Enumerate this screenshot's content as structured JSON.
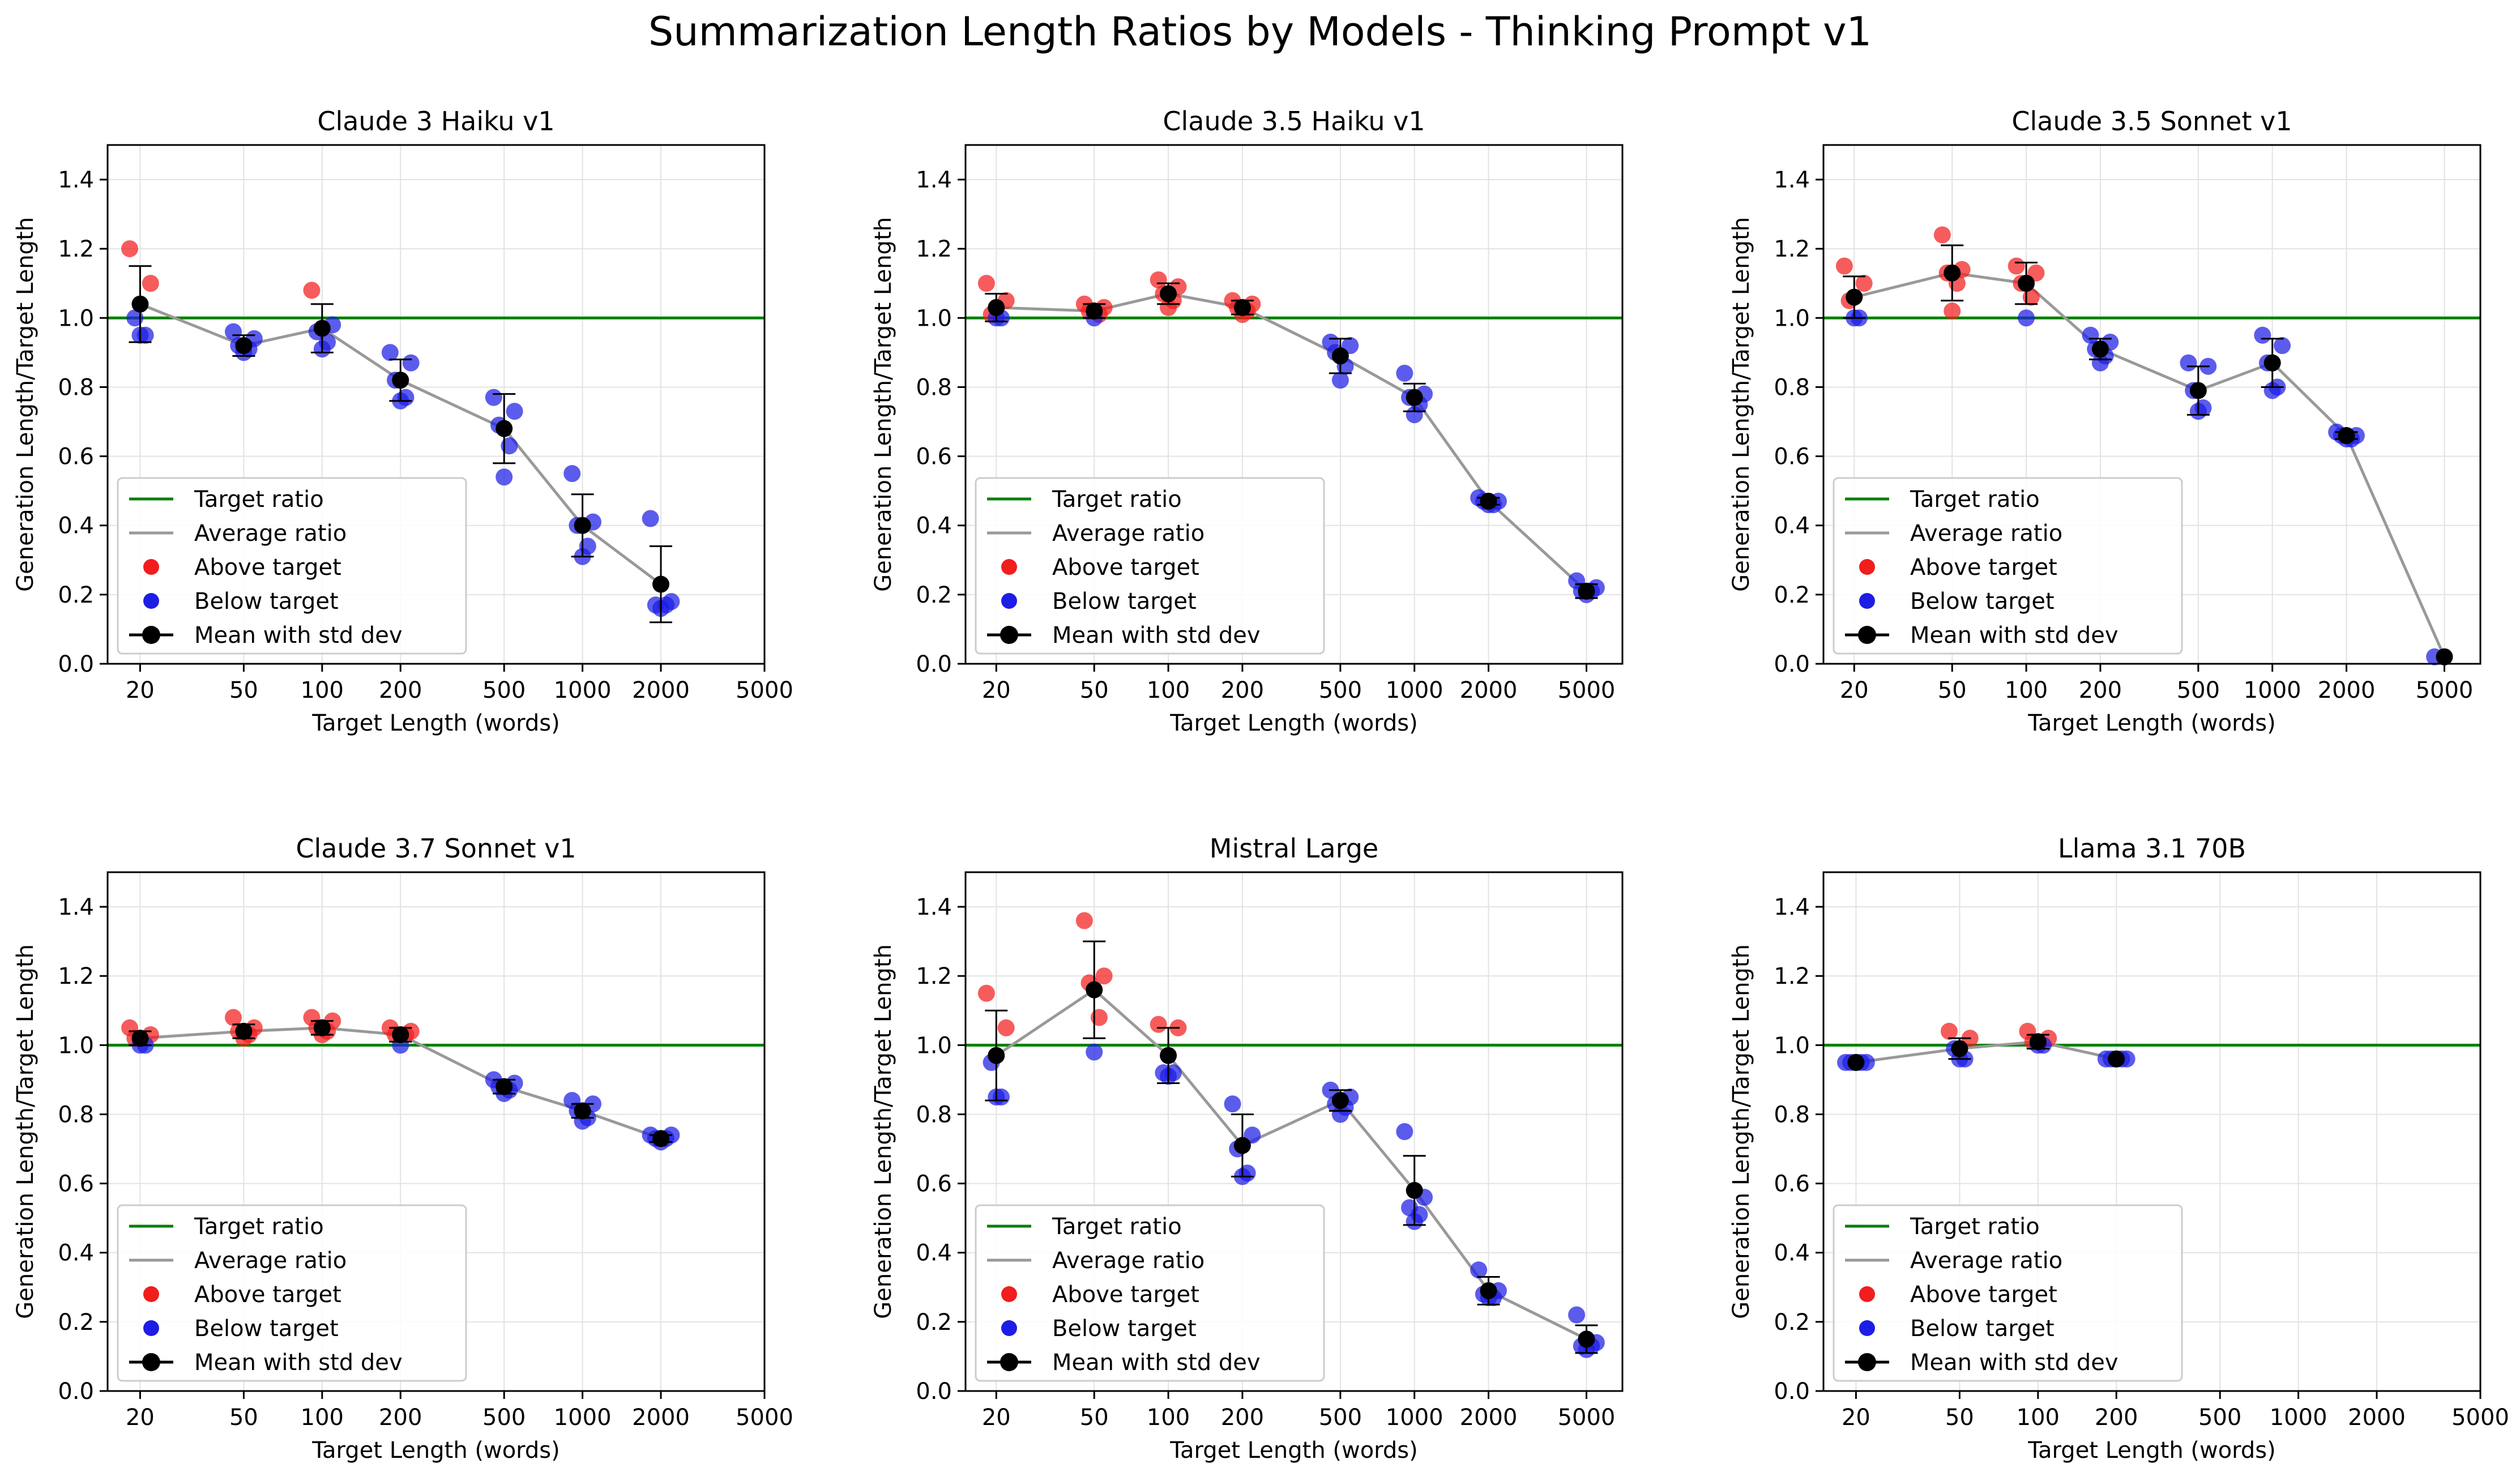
{
  "figure_title": "Summarization Length Ratios by Models - Thinking Prompt v1",
  "colors": {
    "target_line": "#008000",
    "average_line": "#999999",
    "above": "#f21d1d",
    "below": "#1d1de5",
    "mean": "#000000",
    "grid": "#e3e3e3"
  },
  "legend_labels": [
    "Target ratio",
    "Average ratio",
    "Above target",
    "Below target",
    "Mean with std dev"
  ],
  "chart_data": [
    {
      "type": "scatter",
      "title": "Claude 3 Haiku v1",
      "xlabel": "Target Length (words)",
      "ylabel": "Generation Length/Target Length",
      "xscale": "log",
      "xlim": [
        15,
        5000
      ],
      "ylim": [
        0,
        1.5
      ],
      "xticks": [
        20,
        50,
        100,
        200,
        500,
        1000,
        2000,
        5000
      ],
      "yticks": [
        0.0,
        0.2,
        0.4,
        0.6,
        0.8,
        1.0,
        1.2,
        1.4
      ],
      "target_ratio": 1.0,
      "legend_position": "lower-left",
      "groups": [
        {
          "x": 20,
          "points": [
            1.2,
            1.1,
            1.0,
            0.95,
            0.95
          ],
          "mean": 1.04,
          "std": 0.11
        },
        {
          "x": 50,
          "points": [
            0.96,
            0.94,
            0.92,
            0.91,
            0.9
          ],
          "mean": 0.92,
          "std": 0.03
        },
        {
          "x": 100,
          "points": [
            1.08,
            0.98,
            0.96,
            0.93,
            0.91
          ],
          "mean": 0.97,
          "std": 0.07
        },
        {
          "x": 200,
          "points": [
            0.9,
            0.87,
            0.82,
            0.77,
            0.76
          ],
          "mean": 0.82,
          "std": 0.06
        },
        {
          "x": 500,
          "points": [
            0.77,
            0.73,
            0.69,
            0.63,
            0.54
          ],
          "mean": 0.68,
          "std": 0.1
        },
        {
          "x": 1000,
          "points": [
            0.55,
            0.41,
            0.4,
            0.34,
            0.31
          ],
          "mean": 0.4,
          "std": 0.09
        },
        {
          "x": 2000,
          "points": [
            0.42,
            0.18,
            0.17,
            0.17,
            0.16
          ],
          "mean": 0.23,
          "std": 0.11
        }
      ]
    },
    {
      "type": "scatter",
      "title": "Claude 3.5 Haiku v1",
      "xlabel": "Target Length (words)",
      "ylabel": "Generation Length/Target Length",
      "xscale": "log",
      "xlim": [
        15,
        7000
      ],
      "ylim": [
        0,
        1.5
      ],
      "xticks": [
        20,
        50,
        100,
        200,
        500,
        1000,
        2000,
        5000
      ],
      "yticks": [
        0.0,
        0.2,
        0.4,
        0.6,
        0.8,
        1.0,
        1.2,
        1.4
      ],
      "target_ratio": 1.0,
      "legend_position": "lower-left",
      "groups": [
        {
          "x": 20,
          "points": [
            1.1,
            1.05,
            1.01,
            1.0,
            1.0
          ],
          "mean": 1.03,
          "std": 0.04
        },
        {
          "x": 50,
          "points": [
            1.04,
            1.03,
            1.02,
            1.01,
            1.0
          ],
          "mean": 1.02,
          "std": 0.02
        },
        {
          "x": 100,
          "points": [
            1.11,
            1.09,
            1.07,
            1.05,
            1.03
          ],
          "mean": 1.07,
          "std": 0.03
        },
        {
          "x": 200,
          "points": [
            1.05,
            1.04,
            1.03,
            1.02,
            1.01
          ],
          "mean": 1.03,
          "std": 0.02
        },
        {
          "x": 500,
          "points": [
            0.93,
            0.92,
            0.9,
            0.86,
            0.82
          ],
          "mean": 0.89,
          "std": 0.05
        },
        {
          "x": 1000,
          "points": [
            0.84,
            0.78,
            0.77,
            0.75,
            0.72
          ],
          "mean": 0.77,
          "std": 0.04
        },
        {
          "x": 2000,
          "points": [
            0.48,
            0.47,
            0.47,
            0.46,
            0.46
          ],
          "mean": 0.47,
          "std": 0.01
        },
        {
          "x": 5000,
          "points": [
            0.24,
            0.22,
            0.21,
            0.21,
            0.2
          ],
          "mean": 0.21,
          "std": 0.02
        }
      ]
    },
    {
      "type": "scatter",
      "title": "Claude 3.5 Sonnet v1",
      "xlabel": "Target Length (words)",
      "ylabel": "Generation Length/Target Length",
      "xscale": "log",
      "xlim": [
        15,
        7000
      ],
      "ylim": [
        0,
        1.5
      ],
      "xticks": [
        20,
        50,
        100,
        200,
        500,
        1000,
        2000,
        5000
      ],
      "yticks": [
        0.0,
        0.2,
        0.4,
        0.6,
        0.8,
        1.0,
        1.2,
        1.4
      ],
      "target_ratio": 1.0,
      "legend_position": "lower-left",
      "groups": [
        {
          "x": 20,
          "points": [
            1.15,
            1.1,
            1.05,
            1.0,
            1.0
          ],
          "mean": 1.06,
          "std": 0.06
        },
        {
          "x": 50,
          "points": [
            1.24,
            1.14,
            1.13,
            1.1,
            1.02
          ],
          "mean": 1.13,
          "std": 0.08
        },
        {
          "x": 100,
          "points": [
            1.15,
            1.13,
            1.1,
            1.06,
            1.0
          ],
          "mean": 1.1,
          "std": 0.06
        },
        {
          "x": 200,
          "points": [
            0.95,
            0.93,
            0.91,
            0.89,
            0.87
          ],
          "mean": 0.91,
          "std": 0.03
        },
        {
          "x": 500,
          "points": [
            0.87,
            0.86,
            0.79,
            0.74,
            0.73
          ],
          "mean": 0.79,
          "std": 0.07
        },
        {
          "x": 1000,
          "points": [
            0.95,
            0.92,
            0.87,
            0.8,
            0.79
          ],
          "mean": 0.87,
          "std": 0.07
        },
        {
          "x": 2000,
          "points": [
            0.67,
            0.66,
            0.66,
            0.65,
            0.65
          ],
          "mean": 0.66,
          "std": 0.01
        },
        {
          "x": 5000,
          "points": [
            0.02
          ],
          "mean": 0.02,
          "std": 0.0
        }
      ]
    },
    {
      "type": "scatter",
      "title": "Claude 3.7 Sonnet v1",
      "xlabel": "Target Length (words)",
      "ylabel": "Generation Length/Target Length",
      "xscale": "log",
      "xlim": [
        15,
        5000
      ],
      "ylim": [
        0,
        1.5
      ],
      "xticks": [
        20,
        50,
        100,
        200,
        500,
        1000,
        2000,
        5000
      ],
      "yticks": [
        0.0,
        0.2,
        0.4,
        0.6,
        0.8,
        1.0,
        1.2,
        1.4
      ],
      "target_ratio": 1.0,
      "legend_position": "lower-left",
      "groups": [
        {
          "x": 20,
          "points": [
            1.05,
            1.03,
            1.02,
            1.0,
            1.0
          ],
          "mean": 1.02,
          "std": 0.02
        },
        {
          "x": 50,
          "points": [
            1.08,
            1.05,
            1.04,
            1.03,
            1.02
          ],
          "mean": 1.04,
          "std": 0.02
        },
        {
          "x": 100,
          "points": [
            1.08,
            1.07,
            1.05,
            1.04,
            1.03
          ],
          "mean": 1.05,
          "std": 0.02
        },
        {
          "x": 200,
          "points": [
            1.05,
            1.04,
            1.03,
            1.03,
            1.0
          ],
          "mean": 1.03,
          "std": 0.02
        },
        {
          "x": 500,
          "points": [
            0.9,
            0.89,
            0.88,
            0.87,
            0.86
          ],
          "mean": 0.88,
          "std": 0.02
        },
        {
          "x": 1000,
          "points": [
            0.84,
            0.83,
            0.81,
            0.79,
            0.78
          ],
          "mean": 0.81,
          "std": 0.02
        },
        {
          "x": 2000,
          "points": [
            0.74,
            0.74,
            0.73,
            0.73,
            0.72
          ],
          "mean": 0.73,
          "std": 0.01
        }
      ]
    },
    {
      "type": "scatter",
      "title": "Mistral Large",
      "xlabel": "Target Length (words)",
      "ylabel": "Generation Length/Target Length",
      "xscale": "log",
      "xlim": [
        15,
        7000
      ],
      "ylim": [
        0,
        1.5
      ],
      "xticks": [
        20,
        50,
        100,
        200,
        500,
        1000,
        2000,
        5000
      ],
      "yticks": [
        0.0,
        0.2,
        0.4,
        0.6,
        0.8,
        1.0,
        1.2,
        1.4
      ],
      "target_ratio": 1.0,
      "legend_position": "lower-left",
      "groups": [
        {
          "x": 20,
          "points": [
            1.15,
            1.05,
            0.95,
            0.85,
            0.85
          ],
          "mean": 0.97,
          "std": 0.13
        },
        {
          "x": 50,
          "points": [
            1.36,
            1.2,
            1.18,
            1.08,
            0.98
          ],
          "mean": 1.16,
          "std": 0.14
        },
        {
          "x": 100,
          "points": [
            1.06,
            1.05,
            0.92,
            0.92,
            0.91
          ],
          "mean": 0.97,
          "std": 0.08
        },
        {
          "x": 200,
          "points": [
            0.83,
            0.74,
            0.7,
            0.63,
            0.62
          ],
          "mean": 0.71,
          "std": 0.09
        },
        {
          "x": 500,
          "points": [
            0.87,
            0.85,
            0.83,
            0.82,
            0.8
          ],
          "mean": 0.84,
          "std": 0.03
        },
        {
          "x": 1000,
          "points": [
            0.75,
            0.56,
            0.53,
            0.51,
            0.49
          ],
          "mean": 0.58,
          "std": 0.1
        },
        {
          "x": 2000,
          "points": [
            0.35,
            0.29,
            0.28,
            0.27,
            0.27
          ],
          "mean": 0.29,
          "std": 0.04
        },
        {
          "x": 5000,
          "points": [
            0.22,
            0.14,
            0.13,
            0.13,
            0.12
          ],
          "mean": 0.15,
          "std": 0.04
        }
      ]
    },
    {
      "type": "scatter",
      "title": "Llama 3.1 70B",
      "xlabel": "Target Length (words)",
      "ylabel": "Generation Length/Target Length",
      "xscale": "log",
      "xlim": [
        15,
        5000
      ],
      "ylim": [
        0,
        1.5
      ],
      "xticks": [
        20,
        50,
        100,
        200,
        500,
        1000,
        2000,
        5000
      ],
      "yticks": [
        0.0,
        0.2,
        0.4,
        0.6,
        0.8,
        1.0,
        1.2,
        1.4
      ],
      "target_ratio": 1.0,
      "legend_position": "lower-left",
      "groups": [
        {
          "x": 20,
          "points": [
            0.95,
            0.95,
            0.95,
            0.95,
            0.95
          ],
          "mean": 0.95,
          "std": 0.0
        },
        {
          "x": 50,
          "points": [
            1.04,
            1.02,
            0.99,
            0.96,
            0.96
          ],
          "mean": 0.99,
          "std": 0.03
        },
        {
          "x": 100,
          "points": [
            1.04,
            1.02,
            1.01,
            1.0,
            1.0
          ],
          "mean": 1.01,
          "std": 0.02
        },
        {
          "x": 200,
          "points": [
            0.96,
            0.96,
            0.96,
            0.96,
            0.96
          ],
          "mean": 0.96,
          "std": 0.0
        }
      ]
    }
  ]
}
